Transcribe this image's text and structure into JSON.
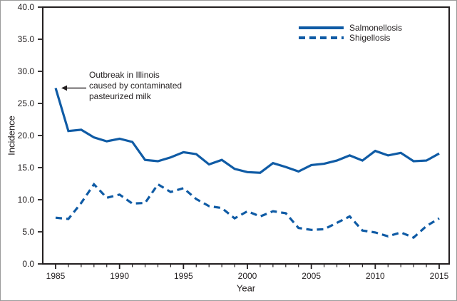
{
  "figure": {
    "background": "#ffffff",
    "outer_border_color": "#9a9a9a",
    "frame_color": "#231F20",
    "text_color": "#231F20",
    "line_color": "#0F5BA5"
  },
  "chart_data": {
    "type": "line",
    "title": "",
    "xlabel": "Year",
    "ylabel": "Incidence",
    "ylim": [
      0,
      40
    ],
    "ytick_values": [
      0,
      5,
      10,
      15,
      20,
      25,
      30,
      35,
      40
    ],
    "ytick_labels": [
      "0.0",
      "5.0",
      "10.0",
      "15.0",
      "20.0",
      "25.0",
      "30.0",
      "35.0",
      "40.0"
    ],
    "xtick_major_values": [
      1985,
      1990,
      1995,
      2000,
      2005,
      2010,
      2015
    ],
    "xtick_major_labels": [
      "1985",
      "1990",
      "1995",
      "2000",
      "2005",
      "2010",
      "2015"
    ],
    "xtick_minor_every_year": true,
    "grid": false,
    "legend_position": "top-right",
    "x": [
      1985,
      1986,
      1987,
      1988,
      1989,
      1990,
      1991,
      1992,
      1993,
      1994,
      1995,
      1996,
      1997,
      1998,
      1999,
      2000,
      2001,
      2002,
      2003,
      2004,
      2005,
      2006,
      2007,
      2008,
      2009,
      2010,
      2011,
      2012,
      2013,
      2014,
      2015
    ],
    "series": [
      {
        "name": "Salmonellosis",
        "style": "solid",
        "values": [
          27.4,
          20.7,
          20.9,
          19.7,
          19.1,
          19.5,
          19.0,
          16.2,
          16.0,
          16.6,
          17.4,
          17.1,
          15.5,
          16.2,
          14.8,
          14.3,
          14.2,
          15.7,
          15.1,
          14.4,
          15.4,
          15.6,
          16.1,
          16.9,
          16.1,
          17.6,
          16.9,
          17.3,
          16.0,
          16.1,
          17.2
        ]
      },
      {
        "name": "Shigellosis",
        "style": "dashed",
        "values": [
          7.2,
          7.0,
          9.5,
          12.4,
          10.3,
          10.8,
          9.4,
          9.5,
          12.4,
          11.2,
          11.8,
          10.1,
          9.0,
          8.7,
          7.1,
          8.2,
          7.4,
          8.2,
          7.9,
          5.6,
          5.3,
          5.4,
          6.4,
          7.4,
          5.2,
          4.9,
          4.3,
          4.9,
          4.1,
          5.9,
          7.1
        ]
      }
    ]
  },
  "annotation": {
    "lines": [
      "Outbreak in Illinois",
      "caused by contaminated",
      "pasteurized milk"
    ],
    "arrow_points_to": {
      "year": 1985,
      "value": 27.4
    }
  }
}
